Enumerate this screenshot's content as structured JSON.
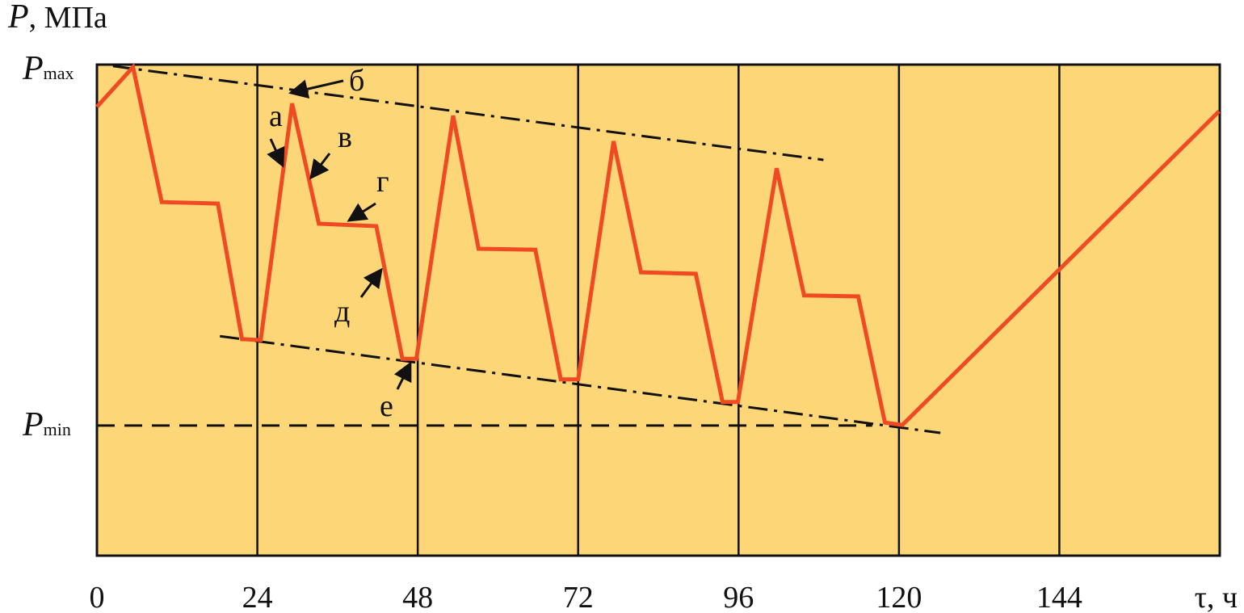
{
  "chart_data": {
    "type": "line",
    "y_label": "P, МПа",
    "x_label": "τ, ч",
    "x": [
      0,
      5.4,
      9.7,
      18.1,
      21.7,
      24.5,
      29.2,
      33.2,
      41.8,
      45.7,
      47.8,
      53.3,
      57.1,
      65.6,
      69.4,
      72.0,
      77.3,
      81.4,
      89.6,
      93.6,
      95.9,
      101.7,
      105.8,
      113.9,
      117.9,
      120.5,
      167.9
    ],
    "series": [
      {
        "color": "#f04a23",
        "values": [
          91.4,
          99.5,
          72.0,
          71.7,
          44.1,
          43.9,
          92.1,
          67.6,
          67.1,
          40.1,
          40.1,
          89.6,
          62.5,
          62.3,
          35.9,
          35.9,
          84.4,
          57.7,
          57.4,
          31.3,
          31.3,
          78.9,
          53.0,
          52.8,
          27.1,
          26.6,
          90.5
        ]
      }
    ],
    "trend_lines": [
      {
        "x": [
          2.4,
          108.7
        ],
        "values": [
          99.7,
          80.6
        ]
      },
      {
        "x": [
          18.4,
          126.2
        ],
        "values": [
          44.7,
          25.0
        ]
      }
    ],
    "annotations": [
      "а",
      "б",
      "в",
      "г",
      "д",
      "е"
    ],
    "xlim": [
      0,
      168
    ],
    "ylim": [
      0,
      100
    ],
    "xticks": [
      0,
      24,
      48,
      72,
      96,
      120,
      144
    ],
    "yticks": [
      {
        "value": 99,
        "label": "Pmax"
      },
      {
        "value": 26.5,
        "label": "Pmin"
      }
    ],
    "background": "#fdd677",
    "grid": true
  }
}
